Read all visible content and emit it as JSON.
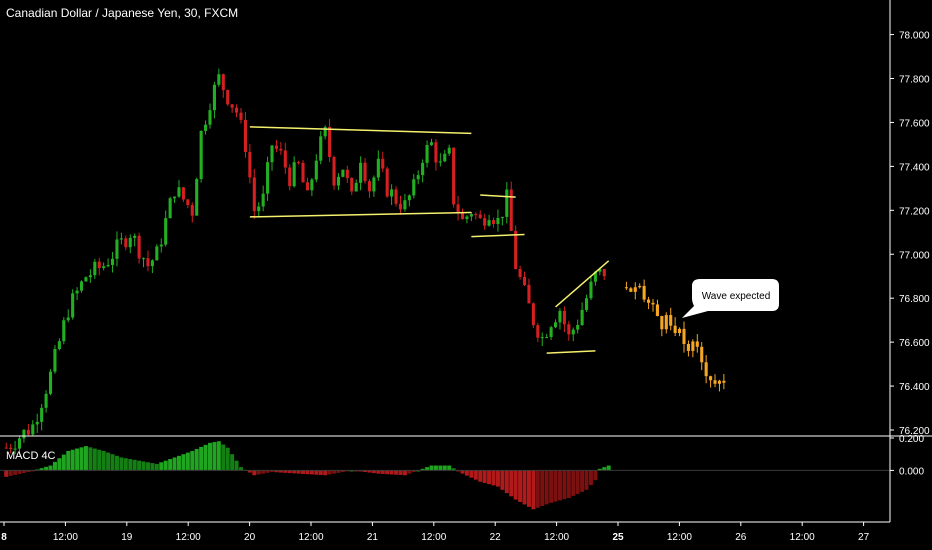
{
  "header": {
    "title": "Canadian Dollar / Japanese Yen, 30, FXCM"
  },
  "indicator": {
    "name": "MACD 4C"
  },
  "annotation": {
    "text": "Wave expected"
  },
  "colors": {
    "background": "#000000",
    "up": "#22b022",
    "down": "#d42020",
    "projection": "#f5a623",
    "pattern_lines": "#f5f06e",
    "macd_up": "#1fa51f",
    "macd_down": "#b01a1a",
    "axis_text": "#ffffff"
  },
  "chart_data": [
    {
      "type": "candlestick",
      "title": "Canadian Dollar / Japanese Yen, 30, FXCM",
      "ylim": [
        76.2,
        78.08
      ],
      "y_ticks": [
        "78.000",
        "77.800",
        "77.600",
        "77.400",
        "77.200",
        "77.000",
        "76.800",
        "76.600",
        "76.400",
        "76.200"
      ],
      "x_ticks": [
        {
          "label": "8",
          "bold": true
        },
        {
          "label": "12:00",
          "bold": false
        },
        {
          "label": "19",
          "bold": false
        },
        {
          "label": "12:00",
          "bold": false
        },
        {
          "label": "20",
          "bold": false
        },
        {
          "label": "12:00",
          "bold": false
        },
        {
          "label": "21",
          "bold": false
        },
        {
          "label": "12:00",
          "bold": false
        },
        {
          "label": "22",
          "bold": false
        },
        {
          "label": "12:00",
          "bold": false
        },
        {
          "label": "25",
          "bold": true
        },
        {
          "label": "12:00",
          "bold": false
        },
        {
          "label": "26",
          "bold": false
        },
        {
          "label": "12:00",
          "bold": false
        },
        {
          "label": "27",
          "bold": false
        }
      ],
      "price_path": [
        [
          0,
          76.12
        ],
        [
          6,
          76.22
        ],
        [
          10,
          76.45
        ],
        [
          14,
          76.75
        ],
        [
          18,
          76.9
        ],
        [
          22,
          76.95
        ],
        [
          26,
          77.05
        ],
        [
          28,
          77.1
        ],
        [
          32,
          76.95
        ],
        [
          34,
          77.0
        ],
        [
          38,
          77.3
        ],
        [
          42,
          77.2
        ],
        [
          44,
          77.55
        ],
        [
          46,
          77.7
        ],
        [
          48,
          77.8
        ],
        [
          50,
          77.72
        ],
        [
          52,
          77.65
        ],
        [
          54,
          77.5
        ],
        [
          56,
          77.2
        ],
        [
          58,
          77.25
        ],
        [
          60,
          77.5
        ],
        [
          62,
          77.45
        ],
        [
          64,
          77.35
        ],
        [
          66,
          77.4
        ],
        [
          68,
          77.25
        ],
        [
          70,
          77.45
        ],
        [
          72,
          77.55
        ],
        [
          74,
          77.35
        ],
        [
          76,
          77.4
        ],
        [
          78,
          77.25
        ],
        [
          80,
          77.45
        ],
        [
          82,
          77.3
        ],
        [
          84,
          77.4
        ],
        [
          86,
          77.3
        ],
        [
          88,
          77.25
        ],
        [
          90,
          77.22
        ],
        [
          92,
          77.3
        ],
        [
          94,
          77.45
        ],
        [
          96,
          77.5
        ],
        [
          98,
          77.4
        ],
        [
          100,
          77.45
        ],
        [
          102,
          77.25
        ],
        [
          104,
          77.15
        ],
        [
          106,
          77.2
        ],
        [
          108,
          77.15
        ],
        [
          110,
          77.2
        ],
        [
          112,
          77.15
        ],
        [
          114,
          77.25
        ],
        [
          116,
          76.95
        ],
        [
          118,
          76.82
        ],
        [
          120,
          76.7
        ],
        [
          122,
          76.62
        ],
        [
          124,
          76.7
        ],
        [
          126,
          76.75
        ],
        [
          128,
          76.62
        ],
        [
          130,
          76.7
        ],
        [
          132,
          76.8
        ],
        [
          134,
          76.9
        ],
        [
          136,
          76.92
        ]
      ],
      "projection_path": [
        [
          138,
          76.85
        ],
        [
          142,
          76.8
        ],
        [
          146,
          76.7
        ],
        [
          150,
          76.62
        ],
        [
          154,
          76.55
        ],
        [
          157,
          76.45
        ],
        [
          160,
          76.38
        ]
      ],
      "patterns": [
        {
          "type": "channel",
          "upper": [
            [
              55,
              77.58
            ],
            [
              105,
              77.55
            ]
          ],
          "lower": [
            [
              55,
              77.17
            ],
            [
              105,
              77.19
            ]
          ]
        },
        {
          "type": "flag",
          "upper": [
            [
              107,
              77.27
            ],
            [
              115,
              77.26
            ]
          ],
          "lower": [
            [
              105,
              77.08
            ],
            [
              117,
              77.09
            ]
          ]
        },
        {
          "type": "wedge",
          "upper": [
            [
              124,
              76.76
            ],
            [
              136,
              76.97
            ]
          ],
          "lower": [
            [
              122,
              76.55
            ],
            [
              133,
              76.56
            ]
          ]
        }
      ]
    },
    {
      "type": "bar",
      "title": "MACD 4C",
      "ylim": [
        -0.3,
        0.2
      ],
      "y_ticks": [
        "0.200",
        "0.000"
      ],
      "histogram_path": [
        [
          0,
          -0.04
        ],
        [
          5,
          -0.01
        ],
        [
          10,
          0.03
        ],
        [
          14,
          0.12
        ],
        [
          18,
          0.15
        ],
        [
          22,
          0.12
        ],
        [
          26,
          0.08
        ],
        [
          30,
          0.06
        ],
        [
          34,
          0.04
        ],
        [
          38,
          0.08
        ],
        [
          42,
          0.12
        ],
        [
          46,
          0.17
        ],
        [
          48,
          0.18
        ],
        [
          50,
          0.14
        ],
        [
          53,
          0.02
        ],
        [
          56,
          -0.03
        ],
        [
          60,
          -0.01
        ],
        [
          66,
          -0.02
        ],
        [
          72,
          -0.03
        ],
        [
          78,
          0.0
        ],
        [
          84,
          -0.02
        ],
        [
          90,
          -0.03
        ],
        [
          96,
          0.03
        ],
        [
          100,
          0.03
        ],
        [
          104,
          -0.02
        ],
        [
          108,
          -0.07
        ],
        [
          112,
          -0.1
        ],
        [
          116,
          -0.18
        ],
        [
          120,
          -0.24
        ],
        [
          124,
          -0.2
        ],
        [
          128,
          -0.17
        ],
        [
          132,
          -0.12
        ],
        [
          134,
          -0.06
        ],
        [
          135,
          0.01
        ],
        [
          137,
          0.03
        ]
      ]
    }
  ]
}
